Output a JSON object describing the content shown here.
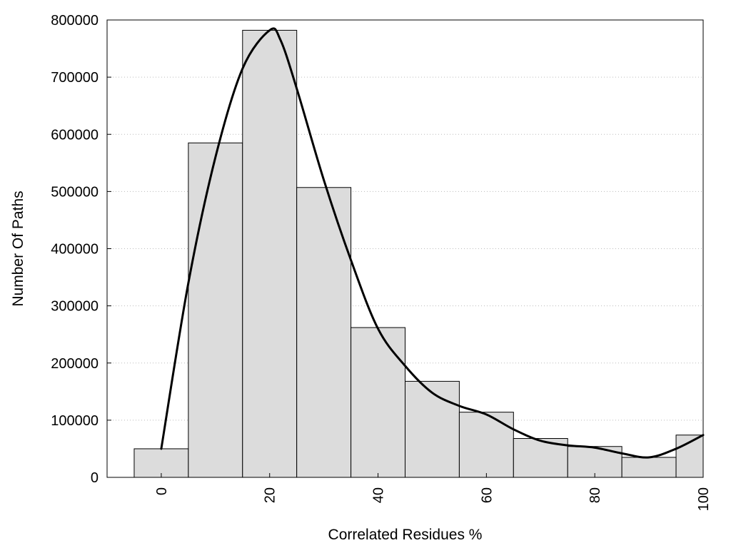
{
  "chart_data": {
    "type": "bar",
    "title": "",
    "xlabel": "Correlated Residues %",
    "ylabel": "Number Of Paths",
    "xlim": [
      -10,
      100
    ],
    "ylim": [
      0,
      800000
    ],
    "x_tick_labels": [
      "0",
      "20",
      "40",
      "60",
      "80",
      "100"
    ],
    "y_tick_labels": [
      "0",
      "100000",
      "200000",
      "300000",
      "400000",
      "500000",
      "600000",
      "700000",
      "800000"
    ],
    "grid": "horizontal dotted",
    "legend": "none",
    "bin_width": 10,
    "bars": [
      {
        "x": 0,
        "value": 50000
      },
      {
        "x": 10,
        "value": 585000
      },
      {
        "x": 20,
        "value": 782000
      },
      {
        "x": 30,
        "value": 507000
      },
      {
        "x": 40,
        "value": 262000
      },
      {
        "x": 50,
        "value": 168000
      },
      {
        "x": 60,
        "value": 114000
      },
      {
        "x": 70,
        "value": 68000
      },
      {
        "x": 80,
        "value": 54000
      },
      {
        "x": 90,
        "value": 35000
      },
      {
        "x": 100,
        "value": 74000
      }
    ],
    "curve": [
      {
        "x": 0,
        "y": 50000
      },
      {
        "x": 5,
        "y": 340000
      },
      {
        "x": 10,
        "y": 560000
      },
      {
        "x": 15,
        "y": 715000
      },
      {
        "x": 20,
        "y": 782000
      },
      {
        "x": 22,
        "y": 765000
      },
      {
        "x": 25,
        "y": 680000
      },
      {
        "x": 30,
        "y": 520000
      },
      {
        "x": 35,
        "y": 380000
      },
      {
        "x": 40,
        "y": 260000
      },
      {
        "x": 45,
        "y": 195000
      },
      {
        "x": 50,
        "y": 148000
      },
      {
        "x": 55,
        "y": 125000
      },
      {
        "x": 60,
        "y": 110000
      },
      {
        "x": 65,
        "y": 84000
      },
      {
        "x": 70,
        "y": 64000
      },
      {
        "x": 75,
        "y": 56000
      },
      {
        "x": 80,
        "y": 52000
      },
      {
        "x": 85,
        "y": 42000
      },
      {
        "x": 90,
        "y": 35000
      },
      {
        "x": 95,
        "y": 50000
      },
      {
        "x": 100,
        "y": 74000
      }
    ],
    "colors": {
      "bar_fill": "#dcdcdc",
      "bar_stroke": "#000000",
      "curve": "#000000",
      "grid": "#bbbbbb",
      "frame": "#000000"
    }
  }
}
